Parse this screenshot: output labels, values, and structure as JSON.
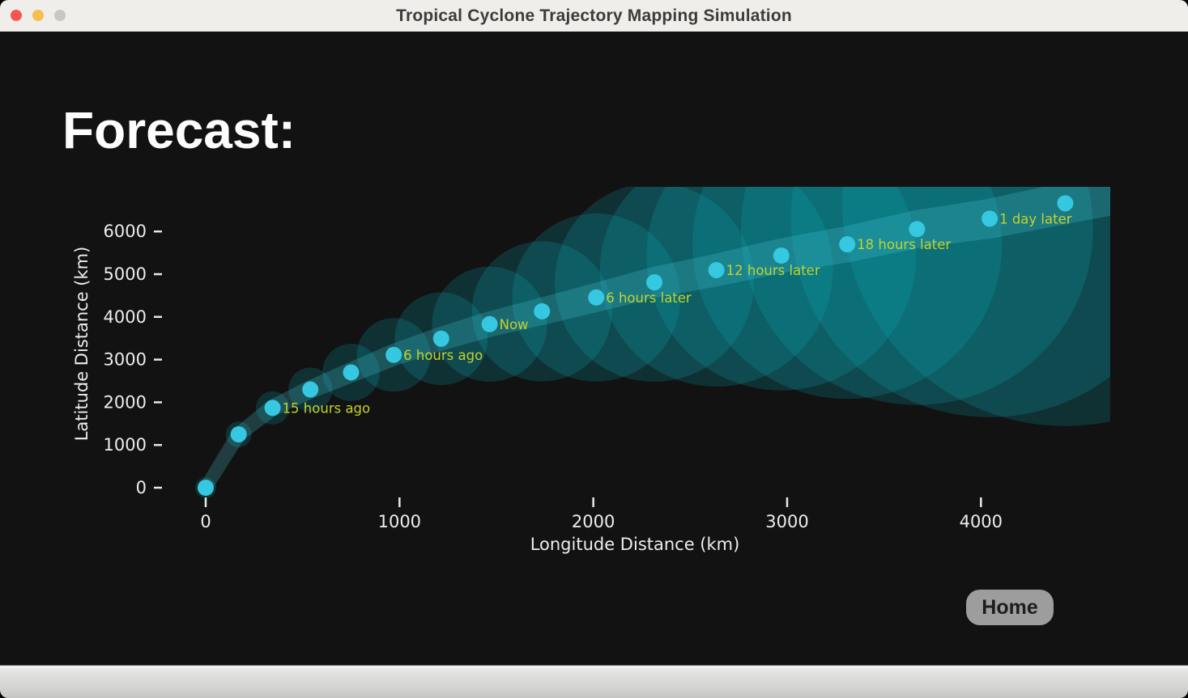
{
  "window": {
    "title": "Tropical Cyclone Trajectory Mapping Simulation",
    "controls": {
      "close": "#F55750",
      "minimize": "#F6BE4E",
      "zoom": "#C9C7C4"
    }
  },
  "page": {
    "heading": "Forecast:"
  },
  "footer": {
    "home_label": "Home"
  },
  "chart_data": {
    "type": "scatter",
    "title": "",
    "xlabel": "Longitude Distance (km)",
    "ylabel": "Latitude Distance (km)",
    "x_ticks": [
      0,
      1000,
      2000,
      3000,
      4000
    ],
    "y_ticks": [
      0,
      1000,
      2000,
      3000,
      4000,
      5000,
      6000
    ],
    "xlim": [
      -70,
      4670
    ],
    "ylim": [
      -230,
      7050
    ],
    "grid": false,
    "legend": "none",
    "points": {
      "x": [
        0,
        170,
        345,
        540,
        750,
        970,
        1215,
        1465,
        1735,
        2015,
        2315,
        2635,
        2970,
        3310,
        3670,
        4045,
        4435
      ],
      "y": [
        0,
        1250,
        1870,
        2300,
        2700,
        3110,
        3490,
        3830,
        4130,
        4455,
        4810,
        5095,
        5435,
        5700,
        6055,
        6300,
        6660
      ]
    },
    "annotations": [
      {
        "label": "15 hours ago",
        "point_index": 2
      },
      {
        "label": "6 hours ago",
        "point_index": 5
      },
      {
        "label": "Now",
        "point_index": 7
      },
      {
        "label": "6 hours later",
        "point_index": 9
      },
      {
        "label": "12 hours later",
        "point_index": 11
      },
      {
        "label": "18 hours later",
        "point_index": 13
      },
      {
        "label": "1 day later",
        "point_index": 15
      }
    ],
    "style": {
      "marker_color": "#35C8E0",
      "annotation_color": "#C3D32B",
      "cone_color": "#0AAFBE",
      "cone_opacity": 0.2,
      "band_color": "#50D7E6",
      "band_opacity": 0.22,
      "tick_color": "#E8E8E8",
      "axis_text_color": "#EDEDED"
    }
  }
}
